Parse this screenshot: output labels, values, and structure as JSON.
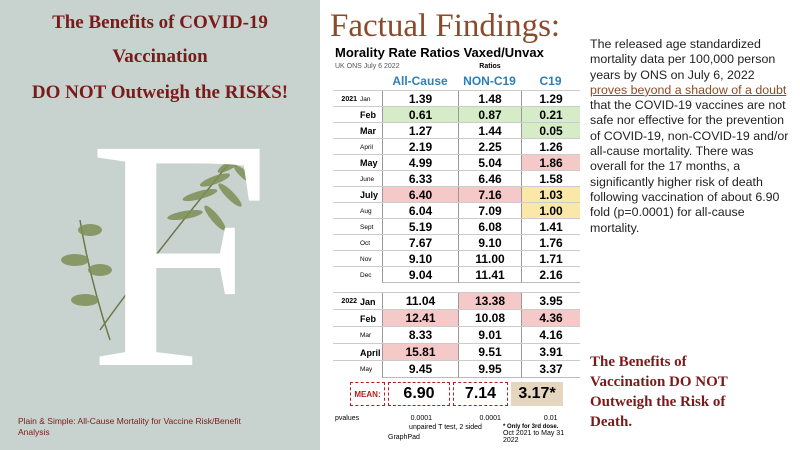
{
  "slide": {
    "left": {
      "title_line1": "The Benefits of COVID-19",
      "title_line2": "Vaccination",
      "title_line3": "DO  NOT Outweigh the RISKS!",
      "letter": "F",
      "caption": "Plain & Simple:  All-Cause Mortality for Vaccine Risk/Benefit Analysis"
    },
    "heading": "Factual Findings:",
    "table": {
      "title": "Morality Rate Ratios Vaxed/Unvax",
      "source": "UK ONS July 6 2022",
      "group_label": "Ratios",
      "columns": [
        "All-Cause",
        "NON-C19",
        "C19"
      ],
      "rows": [
        {
          "year": "2021",
          "month": "Jan",
          "values": [
            "1.39",
            "1.48",
            "1.29"
          ]
        },
        {
          "month": "Feb",
          "values": [
            "0.61",
            "0.87",
            "0.21"
          ]
        },
        {
          "month": "Mar",
          "values": [
            "1.27",
            "1.44",
            "0.05"
          ]
        },
        {
          "month": "April",
          "values": [
            "2.19",
            "2.25",
            "1.26"
          ]
        },
        {
          "month": "May",
          "values": [
            "4.99",
            "5.04",
            "1.86"
          ]
        },
        {
          "month": "June",
          "values": [
            "6.33",
            "6.46",
            "1.58"
          ]
        },
        {
          "month": "July",
          "values": [
            "6.40",
            "7.16",
            "1.03"
          ]
        },
        {
          "month": "Aug",
          "values": [
            "6.04",
            "7.09",
            "1.00"
          ]
        },
        {
          "month": "Sept",
          "values": [
            "5.19",
            "6.08",
            "1.41"
          ]
        },
        {
          "month": "Oct",
          "values": [
            "7.67",
            "9.10",
            "1.76"
          ]
        },
        {
          "month": "Nov",
          "values": [
            "9.10",
            "11.00",
            "1.71"
          ]
        },
        {
          "month": "Dec",
          "values": [
            "9.04",
            "11.41",
            "2.16"
          ]
        },
        {
          "year": "2022",
          "month": "Jan",
          "values": [
            "11.04",
            "13.38",
            "3.95"
          ]
        },
        {
          "month": "Feb",
          "values": [
            "12.41",
            "10.08",
            "4.36"
          ]
        },
        {
          "month": "Mar",
          "values": [
            "8.33",
            "9.01",
            "4.16"
          ]
        },
        {
          "month": "April",
          "values": [
            "15.81",
            "9.51",
            "3.91"
          ]
        },
        {
          "month": "May",
          "values": [
            "9.45",
            "9.95",
            "3.37"
          ]
        }
      ],
      "mean": {
        "label": "MEAN:",
        "values": [
          "6.90",
          "7.14",
          "3.17*"
        ]
      },
      "pvalues": {
        "label": "pvalues",
        "values": [
          "0.0001",
          "0.0001",
          "0.01"
        ]
      },
      "test_note": "unpaired T test, 2 sided",
      "software_note": "GraphPad",
      "dose_note": "* Only for 3rd dose.",
      "period_note": "Oct 2021 to May 31 2022"
    },
    "body_before": "The released age standardized mortality data per 100,000 person years by ONS on July 6, 2022 ",
    "body_link": "proves beyond a shadow of a doubt",
    "body_after": " that the COVID-19 vaccines are not safe nor effective for the prevention of COVID-19, non-COVID-19 and/or all-cause mortality.  There was overall for the 17 months, a significantly higher risk of death following vaccination of about 6.90 fold (p=0.0001) for all-cause mortality.",
    "conclusion": "The Benefits of Vaccination DO  NOT Outweigh the Risk of Death."
  }
}
